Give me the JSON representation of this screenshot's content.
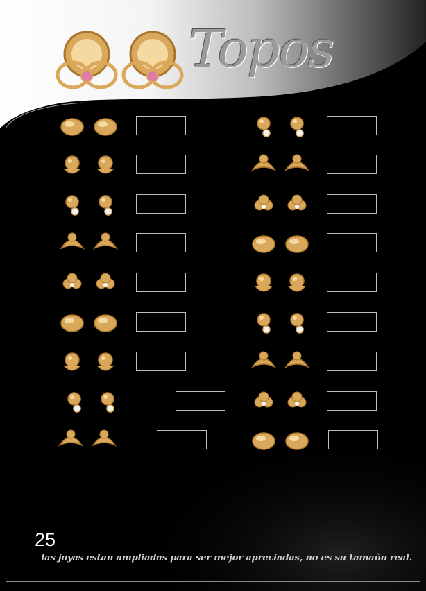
{
  "header": {
    "title": "Topos"
  },
  "products_left": [
    {
      "code": "",
      "icon": "fruit-earring-icon"
    },
    {
      "code": "",
      "icon": "chick-earring-icon"
    },
    {
      "code": "",
      "icon": "oval-earring-icon"
    },
    {
      "code": "",
      "icon": "heart-stone-earring-icon"
    },
    {
      "code": "",
      "icon": "dolphin-earring-icon"
    },
    {
      "code": "",
      "icon": "ring-stone-earring-icon"
    },
    {
      "code": "",
      "icon": "pacifier-earring-icon"
    },
    {
      "code": "",
      "icon": "flower-chain-earring-icon"
    },
    {
      "code": "",
      "icon": "bunny-earring-icon"
    }
  ],
  "products_right": [
    {
      "code": "",
      "icon": "bead-cluster-earring-icon"
    },
    {
      "code": "",
      "icon": "moon-earring-icon"
    },
    {
      "code": "",
      "icon": "leaf-earring-icon"
    },
    {
      "code": "",
      "icon": "ball-stone-earring-icon"
    },
    {
      "code": "",
      "icon": "bow-earring-icon"
    },
    {
      "code": "",
      "icon": "twin-dolphin-earring-icon"
    },
    {
      "code": "",
      "icon": "ball-earring-icon"
    },
    {
      "code": "",
      "icon": "triangle-stone-earring-icon"
    },
    {
      "code": "",
      "icon": "pearl-drop-earring-icon"
    }
  ],
  "footer": {
    "page_number": "25",
    "disclaimer": "las joyas estan ampliadas para ser mejor apreciadas, no es su tamaño real."
  },
  "colors": {
    "gold": "#d9a85a",
    "gold_light": "#f4d9a0",
    "gold_dark": "#a8732c",
    "background": "#000000"
  }
}
